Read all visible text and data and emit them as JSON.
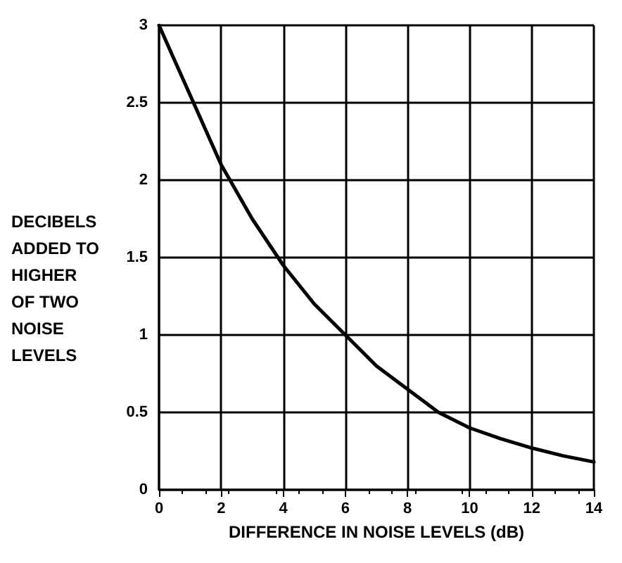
{
  "chart_data": {
    "type": "line",
    "xlabel": "DIFFERENCE IN NOISE LEVELS (dB)",
    "ylabel": "DECIBELS\nADDED TO\nHIGHER\nOF TWO\nNOISE\nLEVELS",
    "x": [
      0,
      1,
      2,
      3,
      4,
      5,
      6,
      7,
      8,
      9,
      10,
      11,
      12,
      13,
      14
    ],
    "series": [
      {
        "color": "#000000",
        "values": [
          3,
          2.55,
          2.1,
          1.75,
          1.45,
          1.2,
          1.0,
          0.8,
          0.65,
          0.5,
          0.4,
          0.33,
          0.27,
          0.22,
          0.18
        ]
      }
    ],
    "xlim": [
      0,
      14
    ],
    "xticks": [
      0,
      2,
      4,
      6,
      8,
      10,
      12,
      14
    ],
    "ylim": [
      0,
      3
    ],
    "yticks": [
      0,
      0.5,
      1,
      1.5,
      2,
      2.5,
      3
    ],
    "grid": true,
    "marker": "none",
    "line_style": "solid"
  }
}
